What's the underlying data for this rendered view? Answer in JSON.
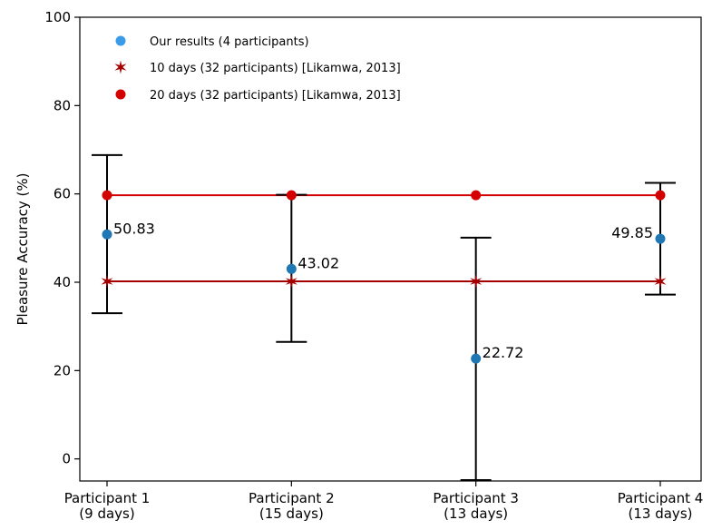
{
  "chart_data": {
    "type": "scatter",
    "ylabel": "Pleasure Accuracy (%)",
    "ylim": [
      -5,
      100
    ],
    "yticks": [
      0,
      20,
      40,
      60,
      80,
      100
    ],
    "categories": [
      [
        "Participant 1",
        "(9 days)"
      ],
      [
        "Participant 2",
        "(15 days)"
      ],
      [
        "Participant 3",
        "(13 days)"
      ],
      [
        "Participant 4",
        "(13 days)"
      ]
    ],
    "legend_position": "top-left",
    "series": [
      {
        "name": "Our results (4 participants)",
        "marker": "circle",
        "color": "#1f77b4",
        "values": [
          50.83,
          43.02,
          22.72,
          49.85
        ],
        "labels": [
          "50.83",
          "43.02",
          "22.72",
          "49.85"
        ],
        "error_low": [
          33.0,
          26.5,
          -4.8,
          37.2
        ],
        "error_high": [
          68.8,
          59.8,
          50.1,
          62.5
        ]
      },
      {
        "name": "10 days (32 participants) [Likamwa, 2013]",
        "marker": "star",
        "color": "#a50000",
        "values": [
          40.2,
          40.2,
          40.2,
          40.2
        ]
      },
      {
        "name": "20 days (32 participants) [Likamwa, 2013]",
        "marker": "circle",
        "color": "#d40000",
        "values": [
          59.7,
          59.7,
          59.7,
          59.7
        ]
      }
    ],
    "legend_marker_colors": [
      "#3a9be8",
      "#a50000",
      "#d40000"
    ],
    "grid": false
  }
}
